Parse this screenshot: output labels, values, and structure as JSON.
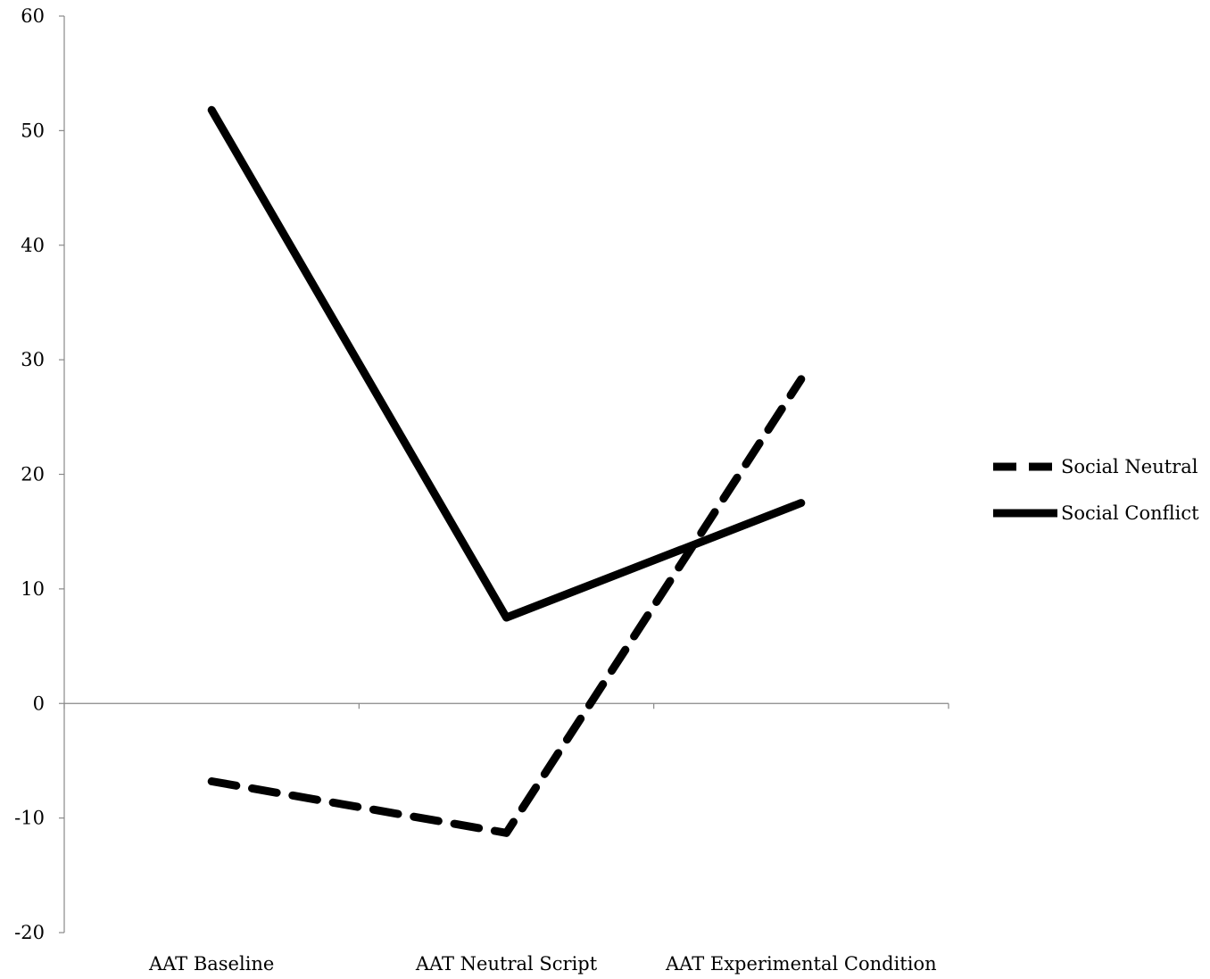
{
  "chart_data": {
    "type": "line",
    "categories": [
      "AAT Baseline",
      "AAT Neutral Script",
      "AAT Experimental Condition"
    ],
    "series": [
      {
        "name": "Social Neutral",
        "values": [
          -6.8,
          -11.3,
          28.3
        ],
        "style": "dashed",
        "color": "#000000"
      },
      {
        "name": "Social Conflict",
        "values": [
          51.8,
          7.5,
          17.5
        ],
        "style": "solid",
        "color": "#000000"
      }
    ],
    "title": "",
    "xlabel": "",
    "ylabel": "",
    "ylim": [
      -20,
      60
    ],
    "yticks": [
      -20,
      -10,
      0,
      10,
      20,
      30,
      40,
      50,
      60
    ],
    "ytick_labels": [
      "-20",
      "-10",
      "0",
      "10",
      "20",
      "30",
      "40",
      "50",
      "60"
    ],
    "grid": false,
    "legend_position": "right"
  }
}
